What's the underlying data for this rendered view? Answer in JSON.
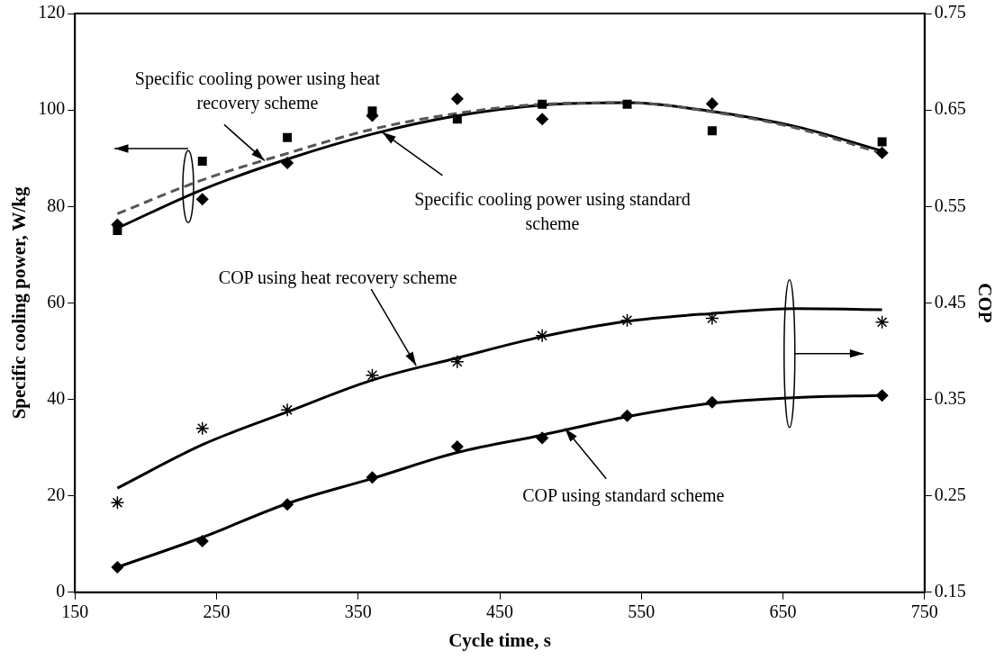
{
  "chart_data": {
    "type": "scatter",
    "xlabel": "Cycle time, s",
    "ylabel": "Specific cooling power, W/kg",
    "y2label": "COP",
    "x": [
      180,
      240,
      300,
      360,
      420,
      480,
      540,
      600,
      720
    ],
    "xlim": [
      150,
      750
    ],
    "xticks": [
      150,
      250,
      350,
      450,
      550,
      650,
      750
    ],
    "ylim": [
      0,
      120
    ],
    "yticks": [
      0,
      20,
      40,
      60,
      80,
      100,
      120
    ],
    "y2lim": [
      0.15,
      0.75
    ],
    "y2ticks": [
      0.15,
      0.25,
      0.35,
      0.45,
      0.55,
      0.65,
      0.75
    ],
    "grid": false,
    "legend": false,
    "series": [
      {
        "type": "scatter",
        "color": "#000000",
        "marker": "square",
        "values": [
          75.0,
          89.4,
          94.3,
          99.8,
          98.1,
          101.2,
          101.2,
          95.7,
          93.4
        ]
      },
      {
        "type": "scatter",
        "color": "#000000",
        "marker": "diamond",
        "values": [
          76.2,
          81.5,
          89.0,
          98.8,
          102.3,
          98.1,
          null,
          101.3,
          91.1
        ]
      },
      {
        "type": "scatter",
        "color": "#000000",
        "marker": "cross",
        "axis": "y2",
        "values": [
          0.243,
          0.32,
          0.339,
          0.375,
          0.389,
          0.416,
          0.432,
          0.434,
          0.43
        ]
      },
      {
        "type": "scatter",
        "color": "#000000",
        "marker": "diamond",
        "axis": "y2",
        "values": [
          0.176,
          0.203,
          0.241,
          0.269,
          0.301,
          0.31,
          0.333,
          0.347,
          0.354
        ]
      },
      {
        "type": "line",
        "color": "#555555",
        "line_style": "dashed",
        "marker": "none",
        "x": [
          180,
          240,
          300,
          360,
          420,
          480,
          540,
          600,
          660,
          720
        ],
        "values": [
          78.5,
          85.5,
          91,
          96,
          99.3,
          101.2,
          101.5,
          99.6,
          96.2,
          91
        ]
      },
      {
        "type": "line",
        "color": "#000000",
        "line_style": "solid",
        "marker": "none",
        "x": [
          180,
          240,
          300,
          360,
          420,
          480,
          540,
          600,
          660,
          720
        ],
        "values": [
          75.5,
          83.5,
          89.8,
          95,
          98.8,
          101,
          101.5,
          99.7,
          96.5,
          91.5
        ]
      },
      {
        "type": "line",
        "color": "#000000",
        "line_style": "solid",
        "marker": "none",
        "axis": "y2",
        "x": [
          180,
          240,
          300,
          360,
          420,
          480,
          540,
          600,
          660,
          720
        ],
        "values": [
          0.258,
          0.303,
          0.337,
          0.37,
          0.393,
          0.415,
          0.431,
          0.439,
          0.444,
          0.443
        ]
      },
      {
        "type": "line",
        "color": "#000000",
        "line_style": "solid",
        "marker": "none",
        "axis": "y2",
        "x": [
          180,
          240,
          300,
          360,
          420,
          480,
          540,
          600,
          660,
          720
        ],
        "values": [
          0.176,
          0.207,
          0.242,
          0.268,
          0.295,
          0.313,
          0.332,
          0.346,
          0.352,
          0.354
        ]
      }
    ],
    "annotations": [
      {
        "text": "Specific cooling power using heat recovery scheme",
        "x": 284,
        "y": 89.5
      },
      {
        "text": "Specific cooling power using standard scheme",
        "x": 367,
        "y": 95.4
      },
      {
        "text": "COP using heat recovery scheme",
        "x": 391,
        "y": 47
      },
      {
        "text": "COP using standard scheme",
        "x": 496,
        "y": 34
      }
    ]
  }
}
